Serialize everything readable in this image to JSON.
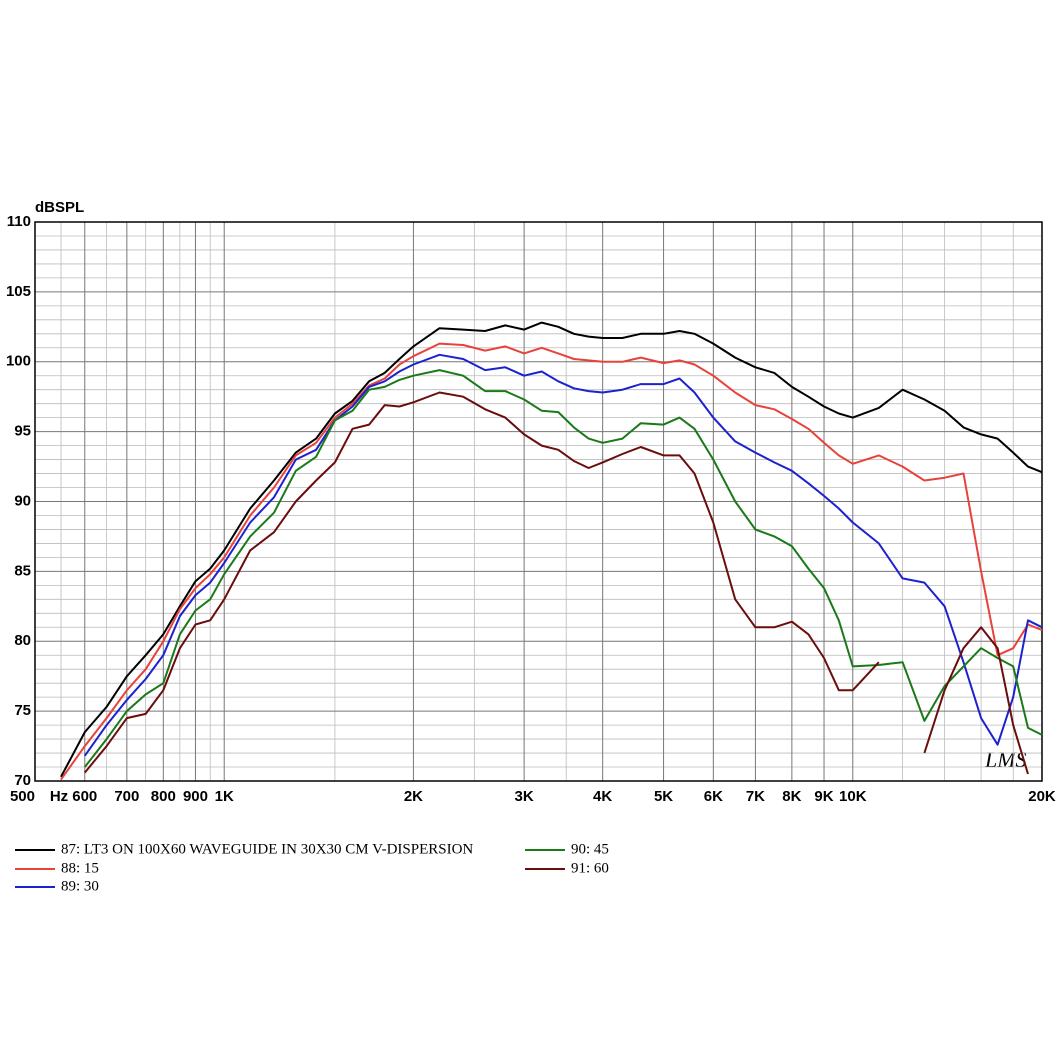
{
  "chart_data": {
    "type": "line",
    "ylabel": "dBSPL",
    "watermark": "LMS",
    "log_x": true,
    "xlim": [
      500,
      20000
    ],
    "ylim": [
      70,
      110
    ],
    "yticks": [
      70,
      75,
      80,
      85,
      90,
      95,
      100,
      105,
      110
    ],
    "y_minor_ticks": [
      71,
      72,
      73,
      74,
      76,
      77,
      78,
      79,
      81,
      82,
      83,
      84,
      86,
      87,
      88,
      89,
      91,
      92,
      93,
      94,
      96,
      97,
      98,
      99,
      101,
      102,
      103,
      104,
      106,
      107,
      108,
      109
    ],
    "xticks": [
      {
        "value": 500,
        "label": "500"
      },
      {
        "value": 600,
        "label": "600"
      },
      {
        "value": 700,
        "label": "700"
      },
      {
        "value": 800,
        "label": "800"
      },
      {
        "value": 900,
        "label": "900"
      },
      {
        "value": 1000,
        "label": "1K"
      },
      {
        "value": 2000,
        "label": "2K"
      },
      {
        "value": 3000,
        "label": "3K"
      },
      {
        "value": 4000,
        "label": "4K"
      },
      {
        "value": 5000,
        "label": "5K"
      },
      {
        "value": 6000,
        "label": "6K"
      },
      {
        "value": 7000,
        "label": "7K"
      },
      {
        "value": 8000,
        "label": "8K"
      },
      {
        "value": 9000,
        "label": "9K"
      },
      {
        "value": 10000,
        "label": "10K"
      },
      {
        "value": 20000,
        "label": "20K"
      }
    ],
    "x_unit": "Hz",
    "x_minor_grid": [
      550,
      650,
      750,
      850,
      950,
      1500,
      2500,
      3500,
      12000,
      14000,
      16000,
      18000
    ],
    "grid": true,
    "x": [
      500,
      550,
      600,
      650,
      700,
      750,
      800,
      850,
      900,
      950,
      1000,
      1100,
      1200,
      1300,
      1400,
      1500,
      1600,
      1700,
      1800,
      1900,
      2000,
      2200,
      2400,
      2600,
      2800,
      3000,
      3200,
      3400,
      3600,
      3800,
      4000,
      4300,
      4600,
      5000,
      5300,
      5600,
      6000,
      6500,
      7000,
      7500,
      8000,
      8500,
      9000,
      9500,
      10000,
      11000,
      12000,
      13000,
      14000,
      15000,
      16000,
      17000,
      18000,
      19000,
      20000
    ],
    "series": [
      {
        "name": "87: LT3 ON 100X60 WAVEGUIDE IN 30X30 CM V-DISPERSION",
        "color": "#000000",
        "values": [
          null,
          70.3,
          73.5,
          75.3,
          77.5,
          79,
          80.5,
          82.5,
          84.3,
          85.2,
          86.5,
          89.5,
          91.5,
          93.5,
          94.5,
          96.3,
          97.2,
          98.6,
          99.2,
          100.2,
          101.1,
          102.4,
          102.3,
          102.2,
          102.6,
          102.3,
          102.8,
          102.5,
          102.0,
          101.8,
          101.7,
          101.7,
          102.0,
          102.0,
          102.2,
          102.0,
          101.3,
          100.3,
          99.6,
          99.2,
          98.2,
          97.5,
          96.8,
          96.3,
          96.0,
          96.7,
          98.0,
          97.3,
          96.5,
          95.3,
          94.8,
          94.5,
          93.5,
          92.5,
          92.1
        ]
      },
      {
        "name": "88: 15",
        "color": "#e8423a",
        "values": [
          null,
          70.1,
          72.5,
          74.5,
          76.5,
          78,
          80,
          82.3,
          83.8,
          84.8,
          86,
          89,
          91,
          93.3,
          94.2,
          96,
          97,
          98.3,
          98.8,
          99.8,
          100.4,
          101.3,
          101.2,
          100.8,
          101.1,
          100.6,
          101.0,
          100.6,
          100.2,
          100.1,
          100.0,
          100.0,
          100.3,
          99.9,
          100.1,
          99.8,
          99.0,
          97.8,
          96.9,
          96.6,
          95.9,
          95.2,
          94.2,
          93.3,
          92.7,
          93.3,
          92.5,
          91.5,
          91.7,
          92.0,
          85,
          79,
          79.5,
          81.2,
          80.8
        ]
      },
      {
        "name": "89: 30",
        "color": "#1c22d0",
        "values": [
          null,
          null,
          71.8,
          74,
          75.8,
          77.3,
          79,
          81.8,
          83.3,
          84.2,
          85.6,
          88.5,
          90.3,
          93,
          93.7,
          95.8,
          96.8,
          98.2,
          98.6,
          99.3,
          99.8,
          100.5,
          100.2,
          99.4,
          99.6,
          99.0,
          99.3,
          98.6,
          98.1,
          97.9,
          97.8,
          98.0,
          98.4,
          98.4,
          98.8,
          97.8,
          96.0,
          94.3,
          93.5,
          92.8,
          92.2,
          91.3,
          90.4,
          89.5,
          88.5,
          87,
          84.5,
          84.2,
          82.5,
          78.5,
          74.5,
          72.6,
          76,
          81.5,
          81
        ]
      },
      {
        "name": "90: 45",
        "color": "#1a7a1a",
        "values": [
          null,
          null,
          71,
          73,
          75,
          76.2,
          77,
          80.5,
          82.2,
          83.0,
          84.8,
          87.5,
          89.2,
          92.2,
          93.2,
          95.8,
          96.5,
          98.0,
          98.2,
          98.7,
          99.0,
          99.4,
          99.0,
          97.9,
          97.9,
          97.3,
          96.5,
          96.4,
          95.3,
          94.5,
          94.2,
          94.5,
          95.6,
          95.5,
          96.0,
          95.2,
          93.0,
          90.0,
          88.0,
          87.5,
          86.8,
          85.2,
          83.8,
          81.5,
          78.2,
          78.3,
          78.5,
          74.3,
          76.8,
          78.2,
          79.5,
          78.8,
          78.2,
          73.8,
          73.3
        ]
      },
      {
        "name": "91: 60",
        "color": "#6b0d0d",
        "values": [
          null,
          null,
          70.6,
          72.5,
          74.5,
          74.8,
          76.5,
          79.5,
          81.2,
          81.5,
          83.0,
          86.5,
          87.8,
          90,
          91.5,
          92.8,
          95.2,
          95.5,
          96.9,
          96.8,
          97.1,
          97.8,
          97.5,
          96.6,
          96.0,
          94.8,
          94.0,
          93.7,
          92.9,
          92.4,
          92.8,
          93.4,
          93.9,
          93.3,
          93.3,
          92.0,
          88.5,
          83,
          81.0,
          81.0,
          81.4,
          80.5,
          78.8,
          76.5,
          76.5,
          78.5,
          null,
          72.0,
          76.5,
          79.5,
          81.0,
          79.5,
          74,
          70.5,
          null
        ]
      }
    ]
  }
}
